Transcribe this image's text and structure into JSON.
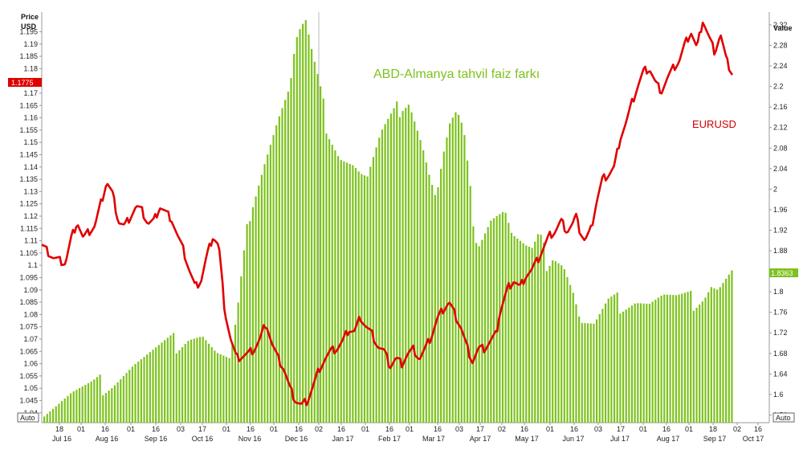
{
  "chart_data": {
    "type": "bar+line",
    "left_axis": {
      "title_line1": "Price",
      "title_line2": "USD",
      "ticks": [
        "1.04",
        "1.045",
        "1.05",
        "1.055",
        "1.06",
        "1.065",
        "1.07",
        "1.075",
        "1.08",
        "1.085",
        "1.09",
        "1.095",
        "1.1",
        "1.105",
        "1.11",
        "1.115",
        "1.12",
        "1.125",
        "1.13",
        "1.135",
        "1.14",
        "1.145",
        "1.15",
        "1.155",
        "1.16",
        "1.165",
        "1.17",
        "1.175",
        "1.18",
        "1.185",
        "1.19",
        "1.195"
      ],
      "ylim": [
        1.036,
        1.203
      ],
      "current_value_label": "1.1775"
    },
    "right_axis": {
      "title": "Value",
      "ticks": [
        "1.56",
        "1.6",
        "1.64",
        "1.68",
        "1.72",
        "1.76",
        "1.8",
        "1.84",
        "1.88",
        "1.92",
        "1.96",
        "2",
        "2.04",
        "2.08",
        "2.12",
        "2.16",
        "2.2",
        "2.24",
        "2.28",
        "2.32"
      ],
      "ylim": [
        1.545,
        2.345
      ],
      "current_value_label": "1.8363"
    },
    "x_axis": {
      "day_ticks": [
        "18",
        "01",
        "16",
        "01",
        "16",
        "03",
        "17",
        "01",
        "16",
        "01",
        "16",
        "02",
        "16",
        "01",
        "16",
        "01",
        "16",
        "03",
        "17",
        "02",
        "16",
        "01",
        "16",
        "03",
        "17",
        "01",
        "16",
        "01",
        "18",
        "02",
        "16"
      ],
      "month_labels": [
        "Jul 16",
        "Aug 16",
        "Sep 16",
        "Oct 16",
        "Nov 16",
        "Dec 16",
        "Jan 17",
        "Feb 17",
        "Mar 17",
        "Apr 17",
        "May 17",
        "Jun 17",
        "Jul 17",
        "Aug 17",
        "Sep 17",
        "Oct 17"
      ],
      "auto_label": "Auto"
    },
    "series": [
      {
        "name": "ABD-Almanya tahvil faiz farkı",
        "type": "bar",
        "axis": "right",
        "color": "#7dc21e",
        "keypoints": [
          [
            0,
            1.57
          ],
          [
            0.04,
            1.6
          ],
          [
            0.07,
            1.61
          ],
          [
            0.1,
            1.63
          ],
          [
            0.13,
            1.66
          ],
          [
            0.16,
            1.68
          ],
          [
            0.19,
            1.7
          ],
          [
            0.21,
            1.72
          ],
          [
            0.23,
            1.72
          ],
          [
            0.25,
            1.68
          ],
          [
            0.27,
            1.66
          ],
          [
            0.28,
            1.74
          ],
          [
            0.3,
            1.97
          ],
          [
            0.32,
            2.06
          ],
          [
            0.34,
            2.14
          ],
          [
            0.355,
            2.19
          ],
          [
            0.36,
            2.22
          ],
          [
            0.365,
            2.28
          ],
          [
            0.37,
            2.3
          ],
          [
            0.38,
            2.32
          ],
          [
            0.39,
            2.25
          ],
          [
            0.41,
            2.13
          ],
          [
            0.43,
            2.07
          ],
          [
            0.45,
            2.05
          ],
          [
            0.46,
            2.03
          ],
          [
            0.47,
            2.02
          ],
          [
            0.49,
            2.1
          ],
          [
            0.51,
            2.14
          ],
          [
            0.52,
            2.17
          ],
          [
            0.53,
            2.18
          ],
          [
            0.535,
            2.16
          ],
          [
            0.55,
            2.09
          ],
          [
            0.56,
            2.03
          ],
          [
            0.57,
            1.98
          ],
          [
            0.58,
            2.06
          ],
          [
            0.59,
            2.12
          ],
          [
            0.6,
            2.14
          ],
          [
            0.61,
            2.1
          ],
          [
            0.62,
            1.98
          ],
          [
            0.63,
            1.9
          ],
          [
            0.65,
            1.95
          ],
          [
            0.67,
            1.96
          ],
          [
            0.68,
            1.91
          ],
          [
            0.7,
            1.88
          ],
          [
            0.71,
            1.87
          ],
          [
            0.72,
            1.9
          ],
          [
            0.73,
            1.86
          ],
          [
            0.74,
            1.88
          ],
          [
            0.755,
            1.86
          ],
          [
            0.77,
            1.8
          ],
          [
            0.78,
            1.74
          ],
          [
            0.8,
            1.73
          ],
          [
            0.81,
            1.75
          ],
          [
            0.82,
            1.77
          ],
          [
            0.84,
            1.78
          ],
          [
            0.86,
            1.79
          ],
          [
            0.88,
            1.78
          ],
          [
            0.9,
            1.79
          ],
          [
            0.92,
            1.78
          ],
          [
            0.94,
            1.78
          ],
          [
            0.95,
            1.79
          ],
          [
            0.96,
            1.8
          ],
          [
            0.97,
            1.82
          ],
          [
            0.98,
            1.81
          ],
          [
            1,
            1.84
          ]
        ],
        "bar_count": 235
      },
      {
        "name": "EURUSD",
        "type": "line",
        "axis": "left",
        "color": "#e00000",
        "keypoints": [
          [
            0,
            1.108
          ],
          [
            0.02,
            1.103
          ],
          [
            0.04,
            1.101
          ],
          [
            0.05,
            1.111
          ],
          [
            0.06,
            1.118
          ],
          [
            0.07,
            1.111
          ],
          [
            0.09,
            1.116
          ],
          [
            0.1,
            1.125
          ],
          [
            0.11,
            1.134
          ],
          [
            0.12,
            1.129
          ],
          [
            0.13,
            1.118
          ],
          [
            0.14,
            1.116
          ],
          [
            0.15,
            1.12
          ],
          [
            0.16,
            1.124
          ],
          [
            0.17,
            1.122
          ],
          [
            0.18,
            1.117
          ],
          [
            0.19,
            1.118
          ],
          [
            0.2,
            1.124
          ],
          [
            0.22,
            1.119
          ],
          [
            0.23,
            1.112
          ],
          [
            0.24,
            1.106
          ],
          [
            0.25,
            1.098
          ],
          [
            0.26,
            1.091
          ],
          [
            0.27,
            1.094
          ],
          [
            0.28,
            1.104
          ],
          [
            0.29,
            1.112
          ],
          [
            0.3,
            1.108
          ],
          [
            0.31,
            1.082
          ],
          [
            0.32,
            1.07
          ],
          [
            0.33,
            1.062
          ],
          [
            0.35,
            1.064
          ],
          [
            0.36,
            1.066
          ],
          [
            0.37,
            1.07
          ],
          [
            0.38,
            1.077
          ],
          [
            0.39,
            1.068
          ],
          [
            0.4,
            1.062
          ],
          [
            0.41,
            1.058
          ],
          [
            0.42,
            1.05
          ],
          [
            0.43,
            1.045
          ],
          [
            0.44,
            1.043
          ],
          [
            0.45,
            1.045
          ],
          [
            0.46,
            1.051
          ],
          [
            0.47,
            1.058
          ],
          [
            0.48,
            1.062
          ],
          [
            0.49,
            1.065
          ],
          [
            0.5,
            1.066
          ],
          [
            0.51,
            1.069
          ],
          [
            0.52,
            1.074
          ],
          [
            0.53,
            1.073
          ],
          [
            0.54,
            1.079
          ],
          [
            0.55,
            1.075
          ],
          [
            0.56,
            1.072
          ],
          [
            0.57,
            1.067
          ],
          [
            0.58,
            1.065
          ],
          [
            0.59,
            1.059
          ],
          [
            0.6,
            1.062
          ],
          [
            0.61,
            1.06
          ],
          [
            0.62,
            1.064
          ],
          [
            0.63,
            1.066
          ],
          [
            0.64,
            1.062
          ],
          [
            0.65,
            1.066
          ],
          [
            0.66,
            1.071
          ],
          [
            0.67,
            1.078
          ],
          [
            0.68,
            1.082
          ],
          [
            0.69,
            1.085
          ],
          [
            0.7,
            1.08
          ],
          [
            0.71,
            1.075
          ],
          [
            0.72,
            1.067
          ],
          [
            0.73,
            1.061
          ],
          [
            0.74,
            1.066
          ],
          [
            0.75,
            1.066
          ],
          [
            0.76,
            1.069
          ],
          [
            0.77,
            1.072
          ],
          [
            0.775,
            1.08
          ],
          [
            0.79,
            1.091
          ],
          [
            0.8,
            1.094
          ],
          [
            0.81,
            1.091
          ],
          [
            0.82,
            1.096
          ],
          [
            0.83,
            1.098
          ],
          [
            0.84,
            1.102
          ],
          [
            0.85,
            1.107
          ],
          [
            0.86,
            1.112
          ],
          [
            0.87,
            1.114
          ],
          [
            0.88,
            1.118
          ],
          [
            0.89,
            1.114
          ],
          [
            0.9,
            1.117
          ],
          [
            0.905,
            1.12
          ],
          [
            0.91,
            1.115
          ],
          [
            0.92,
            1.11
          ],
          [
            0.93,
            1.114
          ],
          [
            0.94,
            1.126
          ],
          [
            0.95,
            1.135
          ],
          [
            0.96,
            1.137
          ],
          [
            0.97,
            1.14
          ],
          [
            0.98,
            1.152
          ],
          [
            0.99,
            1.158
          ],
          [
            1.0,
            1.166
          ],
          [
            1.01,
            1.173
          ],
          [
            1.02,
            1.179
          ],
          [
            1.03,
            1.18
          ],
          [
            1.04,
            1.174
          ],
          [
            1.05,
            1.171
          ],
          [
            1.06,
            1.176
          ],
          [
            1.07,
            1.18
          ],
          [
            1.08,
            1.183
          ],
          [
            1.09,
            1.19
          ],
          [
            1.1,
            1.195
          ],
          [
            1.11,
            1.188
          ],
          [
            1.12,
            1.2
          ],
          [
            1.13,
            1.193
          ],
          [
            1.14,
            1.187
          ],
          [
            1.15,
            1.194
          ],
          [
            1.16,
            1.183
          ],
          [
            1.17,
            1.178
          ]
        ],
        "x_scale_note": ""
      }
    ],
    "annotations": {
      "bar_series_label": "ABD-Almanya tahvil faiz farkı",
      "line_series_label": "EURUSD"
    },
    "colors": {
      "bar": "#7dc21e",
      "line": "#e00000",
      "left_marker_bg": "#e00000",
      "right_marker_bg": "#7dc21e"
    }
  }
}
